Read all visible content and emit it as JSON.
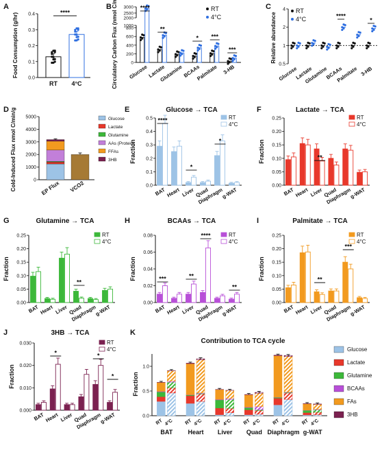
{
  "colors": {
    "Glucose": "#9dc3e6",
    "Lactate": "#e8382b",
    "Glutamine": "#3cb83a",
    "BCAAs": "#b84fd8",
    "FAs": "#f29a1f",
    "3HB": "#7b2150",
    "RT": "#111111",
    "4C": "#2f6fe0",
    "VCO2": "#a67a35",
    "Proteins": "#c27fd9"
  },
  "chart_data": [
    {
      "id": "A",
      "type": "bar",
      "title": "",
      "ylabel": "Food Consumption (g/hr)",
      "categories": [
        "RT",
        "4°C"
      ],
      "values": [
        0.13,
        0.27
      ],
      "errors": [
        0.02,
        0.02
      ],
      "ylim": [
        0,
        0.4
      ],
      "yticks": [
        "0.0",
        "0.1",
        "0.2",
        "0.3",
        "0.4"
      ],
      "sig": [
        "****"
      ]
    },
    {
      "id": "B",
      "type": "bar",
      "title": "",
      "ylabel": "Circulatory Carbon Flux (nmol C/min/g)",
      "legend": [
        "RT",
        "4°C"
      ],
      "categories": [
        "Glucose",
        "Lactate",
        "Glutamine",
        "BCAAs",
        "Palmitate",
        "3-HB"
      ],
      "series": [
        {
          "name": "RT",
          "values": [
            580,
            300,
            190,
            150,
            210,
            30
          ]
        },
        {
          "name": "4°C",
          "values": [
            2400,
            630,
            220,
            340,
            380,
            100
          ]
        }
      ],
      "ylim": [
        0,
        3000
      ],
      "axis_break": [
        1000,
        2000
      ],
      "yticks": [
        "0",
        "200",
        "400",
        "600",
        "800",
        "1000",
        "2000",
        "2500",
        "3000"
      ],
      "sig": [
        "****",
        "**",
        "",
        "*",
        "***",
        "***"
      ]
    },
    {
      "id": "C",
      "type": "scatter",
      "title": "",
      "ylabel": "Relative abundance",
      "legend": [
        "RT",
        "4°C"
      ],
      "categories": [
        "Glucose",
        "Lactate",
        "Glutamine",
        "BCAAs",
        "Palmitate",
        "3-HB"
      ],
      "series": [
        {
          "name": "RT",
          "values": [
            1.0,
            1.0,
            1.0,
            1.0,
            1.0,
            1.0
          ]
        },
        {
          "name": "4°C",
          "values": [
            1.0,
            1.1,
            0.95,
            2.0,
            1.5,
            1.9
          ]
        }
      ],
      "scale": "log2",
      "ylim": [
        0.5,
        4
      ],
      "yticks": [
        "0.5",
        "1",
        "2",
        "4"
      ],
      "sig": [
        "",
        "",
        "",
        "****",
        "",
        "*"
      ]
    },
    {
      "id": "D",
      "type": "bar",
      "title": "",
      "ylabel": "Cold-Induced Flux nmol C/min/g",
      "categories": [
        "EP Flux",
        "VCO2"
      ],
      "stack_names": [
        "Glucose",
        "Lactate",
        "Glutamine",
        "AAs (Protein)",
        "FFAs",
        "3HB"
      ],
      "ep_flux": [
        1250,
        150,
        50,
        900,
        700,
        130
      ],
      "vco2": 2000,
      "ylim": [
        0,
        5000
      ],
      "yticks": [
        "0",
        "1000",
        "2000",
        "3000",
        "4000",
        "5000"
      ]
    },
    {
      "id": "E",
      "type": "bar",
      "title": "Glucose → TCA",
      "ylabel": "Fraction",
      "legend": [
        "RT",
        "4°C"
      ],
      "categories": [
        "BAT",
        "Heart",
        "Liver",
        "Quad",
        "Diaphragm",
        "g-WAT"
      ],
      "series": [
        {
          "name": "RT",
          "values": [
            0.29,
            0.25,
            0.02,
            0.02,
            0.22,
            0.015
          ]
        },
        {
          "name": "4°C",
          "values": [
            0.46,
            0.29,
            0.06,
            0.03,
            0.33,
            0.02
          ]
        }
      ],
      "ylim": [
        0,
        0.5
      ],
      "yticks": [
        "0.0",
        "0.1",
        "0.2",
        "0.3",
        "0.4",
        "0.5"
      ],
      "sig": [
        "****",
        "",
        "*",
        "",
        "*",
        ""
      ]
    },
    {
      "id": "F",
      "type": "bar",
      "title": "Lactate → TCA",
      "ylabel": "Fraction",
      "legend": [
        "RT",
        "4°C"
      ],
      "categories": [
        "BAT",
        "Heart",
        "Liver",
        "Quad",
        "Diaphragm",
        "g-WAT"
      ],
      "series": [
        {
          "name": "RT",
          "values": [
            0.095,
            0.155,
            0.135,
            0.1,
            0.135,
            0.048
          ]
        },
        {
          "name": "4°C",
          "values": [
            0.105,
            0.15,
            0.09,
            0.075,
            0.13,
            0.05
          ]
        }
      ],
      "ylim": [
        0,
        0.25
      ],
      "yticks": [
        "0.00",
        "0.05",
        "0.10",
        "0.15",
        "0.20",
        "0.25"
      ],
      "sig": [
        "",
        "",
        "**",
        "",
        "",
        ""
      ]
    },
    {
      "id": "G",
      "type": "bar",
      "title": "Glutamine → TCA",
      "ylabel": "Fraction",
      "legend": [
        "RT",
        "4°C"
      ],
      "categories": [
        "BAT",
        "Heart",
        "Liver",
        "Quad",
        "Diaphragm",
        "g-WAT"
      ],
      "series": [
        {
          "name": "RT",
          "values": [
            0.098,
            0.015,
            0.165,
            0.042,
            0.015,
            0.045
          ]
        },
        {
          "name": "4°C",
          "values": [
            0.115,
            0.012,
            0.18,
            0.016,
            0.011,
            0.05
          ]
        }
      ],
      "ylim": [
        0,
        0.25
      ],
      "yticks": [
        "0.00",
        "0.05",
        "0.10",
        "0.15",
        "0.20",
        "0.25"
      ],
      "sig": [
        "",
        "",
        "",
        "**",
        "",
        ""
      ]
    },
    {
      "id": "H",
      "type": "bar",
      "title": "BCAAs → TCA",
      "ylabel": "Fraction",
      "legend": [
        "RT",
        "4°C"
      ],
      "categories": [
        "BAT",
        "Heart",
        "Liver",
        "Quad",
        "Diaphragm",
        "g-WAT"
      ],
      "series": [
        {
          "name": "RT",
          "values": [
            0.01,
            0.005,
            0.01,
            0.012,
            0.005,
            0.004
          ]
        },
        {
          "name": "4°C",
          "values": [
            0.02,
            0.01,
            0.022,
            0.065,
            0.008,
            0.01
          ]
        }
      ],
      "ylim": [
        0,
        0.08
      ],
      "yticks": [
        "0.00",
        "0.02",
        "0.04",
        "0.06",
        "0.08"
      ],
      "sig": [
        "***",
        "",
        "**",
        "****",
        "",
        "**"
      ]
    },
    {
      "id": "I",
      "type": "bar",
      "title": "Palmitate → TCA",
      "ylabel": "Fraction",
      "legend": [
        "RT",
        "4°C"
      ],
      "categories": [
        "BAT",
        "Heart",
        "Liver",
        "Quad",
        "Diaphragm",
        "g-WAT"
      ],
      "series": [
        {
          "name": "RT",
          "values": [
            0.055,
            0.185,
            0.04,
            0.043,
            0.15,
            0.018
          ]
        },
        {
          "name": "4°C",
          "values": [
            0.065,
            0.188,
            0.03,
            0.043,
            0.125,
            0.015
          ]
        }
      ],
      "ylim": [
        0,
        0.25
      ],
      "yticks": [
        "0.00",
        "0.05",
        "0.10",
        "0.15",
        "0.20",
        "0.25"
      ],
      "sig": [
        "",
        "",
        "**",
        "",
        "***",
        ""
      ]
    },
    {
      "id": "J",
      "type": "bar",
      "title": "3HB → TCA",
      "ylabel": "Fraction",
      "legend": [
        "RT",
        "4°C"
      ],
      "categories": [
        "BAT",
        "Heart",
        "Liver",
        "Quad",
        "Diaphragm",
        "g-WAT"
      ],
      "series": [
        {
          "name": "RT",
          "values": [
            0.0025,
            0.0095,
            0.0025,
            0.006,
            0.0115,
            0.0035
          ]
        },
        {
          "name": "4°C",
          "values": [
            0.0035,
            0.0205,
            0.0025,
            0.016,
            0.02,
            0.008
          ]
        }
      ],
      "ylim": [
        0,
        0.03
      ],
      "yticks": [
        "0.000",
        "0.010",
        "0.020",
        "0.030"
      ],
      "sig": [
        "",
        "*",
        "",
        "",
        "*",
        "*"
      ]
    },
    {
      "id": "K",
      "type": "bar",
      "title": "Contribution to TCA cycle",
      "ylabel": "Fraction",
      "categories": [
        "BAT",
        "Heart",
        "Liver",
        "Quad",
        "Diaphragm",
        "g-WAT"
      ],
      "condition_labels": [
        "RT",
        "4°C"
      ],
      "stack_names": [
        "Glucose",
        "Lactate",
        "Glutamine",
        "BCAAs",
        "FAs",
        "3HB"
      ],
      "stacks": [
        {
          "RT": [
            0.29,
            0.095,
            0.098,
            0.01,
            0.18,
            0.0025
          ],
          "4C": [
            0.46,
            0.105,
            0.115,
            0.02,
            0.21,
            0.0035
          ]
        },
        {
          "RT": [
            0.25,
            0.155,
            0.015,
            0.005,
            0.63,
            0.0095
          ],
          "4C": [
            0.29,
            0.15,
            0.012,
            0.01,
            0.67,
            0.0205
          ]
        },
        {
          "RT": [
            0.02,
            0.135,
            0.165,
            0.01,
            0.2,
            0.0025
          ],
          "4C": [
            0.06,
            0.09,
            0.18,
            0.022,
            0.16,
            0.0025
          ]
        },
        {
          "RT": [
            0.02,
            0.1,
            0.042,
            0.012,
            0.25,
            0.006
          ],
          "4C": [
            0.03,
            0.075,
            0.016,
            0.065,
            0.27,
            0.016
          ]
        },
        {
          "RT": [
            0.22,
            0.135,
            0.015,
            0.005,
            0.84,
            0.0115
          ],
          "4C": [
            0.33,
            0.13,
            0.011,
            0.008,
            0.72,
            0.02
          ]
        },
        {
          "RT": [
            0.015,
            0.048,
            0.045,
            0.004,
            0.13,
            0.0035
          ],
          "4C": [
            0.02,
            0.05,
            0.05,
            0.01,
            0.1,
            0.008
          ]
        }
      ],
      "ylim": [
        0,
        1.25
      ],
      "yticks": [
        "0.0",
        "0.5",
        "1.0"
      ]
    }
  ]
}
